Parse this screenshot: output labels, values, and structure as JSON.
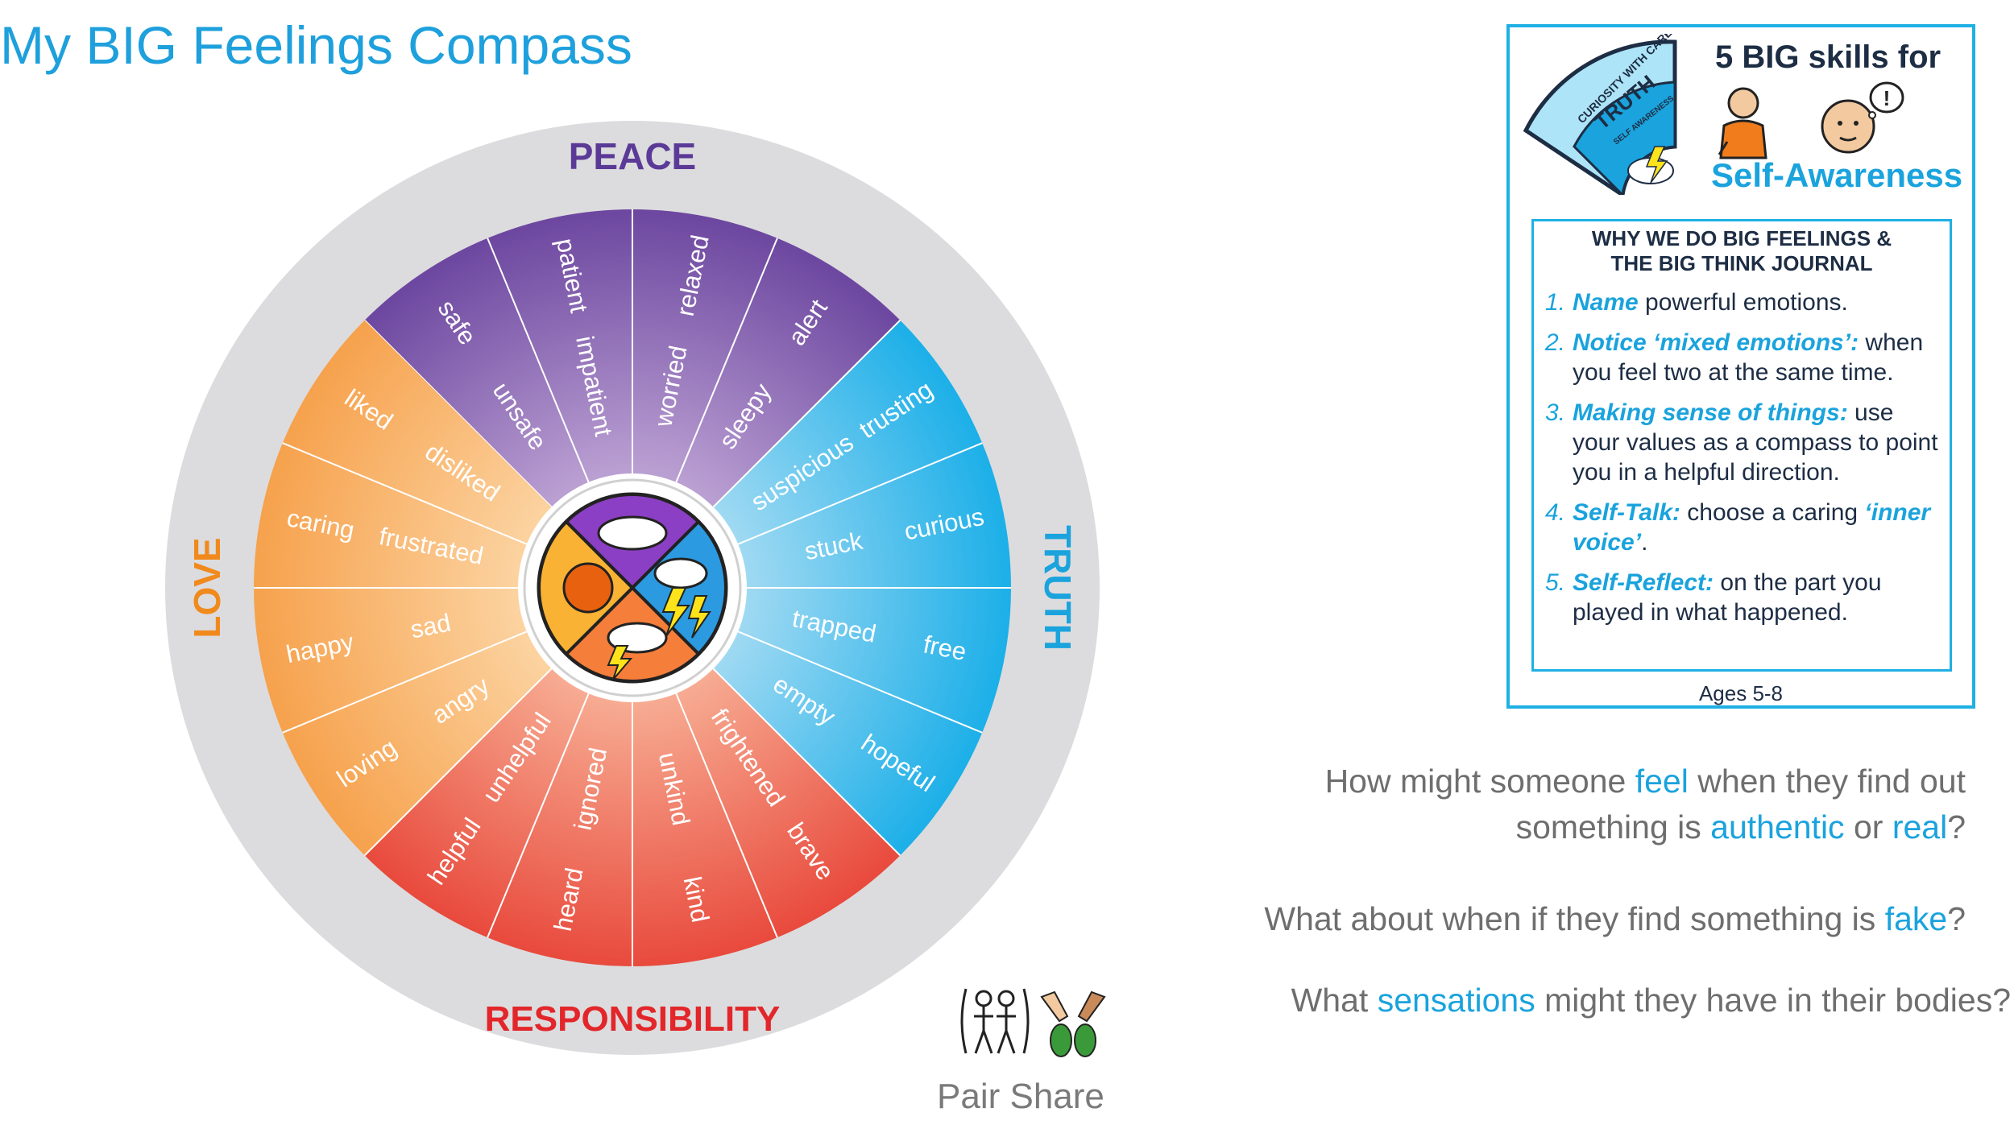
{
  "title": "My BIG Feelings Compass",
  "compass": {
    "values": [
      {
        "label": "PEACE",
        "color": "#5b3a97"
      },
      {
        "label": "TRUTH",
        "color": "#1aa3dd"
      },
      {
        "label": "RESPONSIBILITY",
        "color": "#e2262a"
      },
      {
        "label": "LOVE",
        "color": "#f08a1c"
      }
    ],
    "colors": {
      "peace_outer": "#6a449e",
      "peace_inner": "#c0a6d6",
      "truth_outer": "#18aee8",
      "truth_inner": "#a8dcf3",
      "resp_outer": "#e8473a",
      "resp_inner": "#f8b298",
      "love_outer": "#f6a04a",
      "love_inner": "#fcd6a6",
      "ring": "#dcdcde"
    },
    "segments": {
      "peace": [
        {
          "outer": "safe",
          "inner": "unsafe"
        },
        {
          "outer": "patient",
          "inner": "impatient"
        },
        {
          "outer": "relaxed",
          "inner": "worried"
        },
        {
          "outer": "alert",
          "inner": "sleepy"
        }
      ],
      "truth": [
        {
          "outer": "trusting",
          "inner": "suspicious"
        },
        {
          "outer": "curious",
          "inner": "stuck"
        },
        {
          "outer": "free",
          "inner": "trapped"
        },
        {
          "outer": "hopeful",
          "inner": "empty"
        }
      ],
      "responsibility": [
        {
          "outer": "brave",
          "inner": "frightened"
        },
        {
          "outer": "kind",
          "inner": "unkind"
        },
        {
          "outer": "heard",
          "inner": "ignored"
        },
        {
          "outer": "helpful",
          "inner": "unhelpful"
        }
      ],
      "love": [
        {
          "outer": "loving",
          "inner": "angry"
        },
        {
          "outer": "happy",
          "inner": "sad"
        },
        {
          "outer": "caring",
          "inner": "frustrated"
        },
        {
          "outer": "liked",
          "inner": "disliked"
        }
      ]
    }
  },
  "card": {
    "fan_lines": [
      "CURIOSITY WITH CARE",
      "TRUTH",
      "SELF AWARENESS"
    ],
    "heading": "5 BIG skills for",
    "subheading": "Self-Awareness",
    "inner_heading_1": "WHY WE DO BIG FEELINGS &",
    "inner_heading_2": "THE BIG THINK JOURNAL",
    "items": [
      {
        "num": "1.",
        "keyword": "Name",
        "text": " powerful emotions."
      },
      {
        "num": "2.",
        "keyword": "Notice ‘mixed emotions’:",
        "text": " when you feel two at the same time."
      },
      {
        "num": "3.",
        "keyword": "Making sense of things:",
        "text": " use your values as a compass to point you in a helpful direction."
      },
      {
        "num": "4.",
        "keyword": "Self-Talk:",
        "text": " choose a caring ",
        "keyword2": "‘inner voice’",
        "text2": "."
      },
      {
        "num": "5.",
        "keyword": "Self-Reflect:",
        "text": " on the part you played in what happened."
      }
    ],
    "ages": "Ages 5-8"
  },
  "questions": {
    "q1_a": "How might someone ",
    "q1_b": "feel",
    "q1_c": " when they find out",
    "q1_d": "something is ",
    "q1_e": "authentic",
    "q1_f": " or ",
    "q1_g": "real",
    "q1_h": "?",
    "q2_a": "What about when if they find something is ",
    "q2_b": "fake",
    "q2_c": "?",
    "q3_a": "What ",
    "q3_b": "sensations",
    "q3_c": " might they have in their bodies?"
  },
  "pair_share": "Pair Share"
}
